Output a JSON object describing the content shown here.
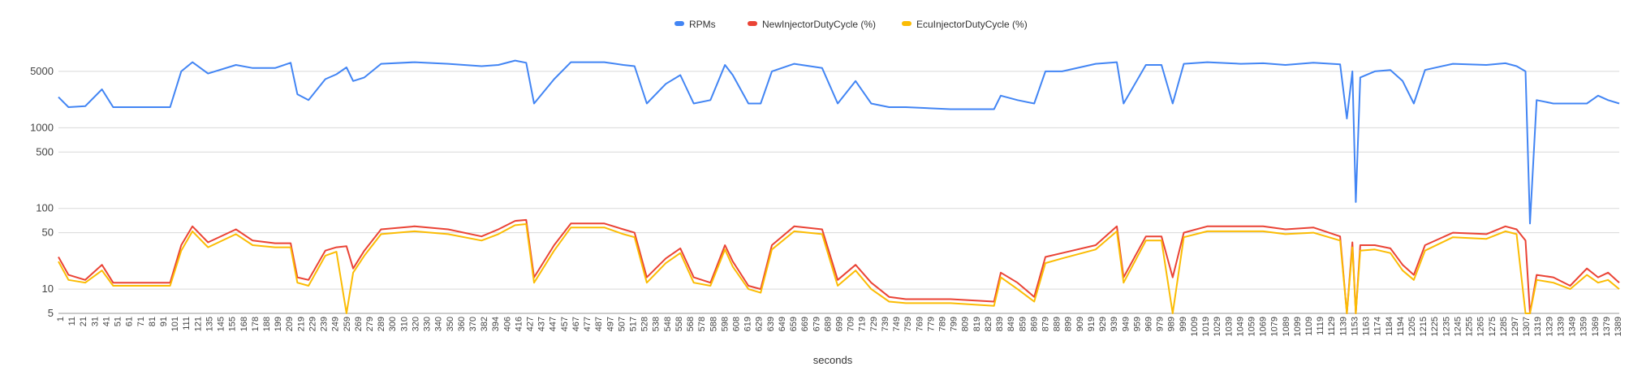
{
  "chart_data": {
    "type": "line",
    "title": "",
    "xlabel": "seconds",
    "ylabel": "",
    "yscale": "log",
    "ylim": [
      5,
      10000
    ],
    "ytick_values": [
      5,
      10,
      50,
      100,
      500,
      1000,
      5000
    ],
    "ytick_labels": [
      "5",
      "10",
      "50",
      "100",
      "500",
      "1000",
      "5000"
    ],
    "grid": true,
    "legend_position": "top-center",
    "xlim": [
      1,
      1399
    ],
    "xtick_labels": [
      "1",
      "11",
      "21",
      "31",
      "41",
      "51",
      "61",
      "71",
      "81",
      "91",
      "101",
      "111",
      "121",
      "135",
      "145",
      "155",
      "168",
      "178",
      "188",
      "199",
      "209",
      "219",
      "229",
      "239",
      "249",
      "259",
      "269",
      "279",
      "289",
      "300",
      "310",
      "320",
      "330",
      "340",
      "350",
      "360",
      "370",
      "382",
      "394",
      "406",
      "416",
      "427",
      "437",
      "447",
      "457",
      "467",
      "477",
      "487",
      "497",
      "507",
      "517",
      "528",
      "538",
      "548",
      "558",
      "568",
      "578",
      "588",
      "598",
      "608",
      "619",
      "629",
      "639",
      "649",
      "659",
      "669",
      "679",
      "689",
      "699",
      "709",
      "719",
      "729",
      "739",
      "749",
      "759",
      "769",
      "779",
      "789",
      "799",
      "809",
      "819",
      "829",
      "839",
      "849",
      "859",
      "869",
      "879",
      "889",
      "899",
      "909",
      "919",
      "929",
      "939",
      "949",
      "959",
      "969",
      "979",
      "989",
      "999",
      "1009",
      "1019",
      "1029",
      "1039",
      "1049",
      "1059",
      "1069",
      "1079",
      "1089",
      "1099",
      "1109",
      "1119",
      "1129",
      "1139",
      "1153",
      "1163",
      "1174",
      "1184",
      "1194",
      "1205",
      "1215",
      "1225",
      "1235",
      "1245",
      "1255",
      "1265",
      "1275",
      "1285",
      "1297",
      "1307",
      "1319",
      "1329",
      "1339",
      "1349",
      "1359",
      "1369",
      "1379",
      "1389"
    ],
    "series": [
      {
        "name": "RPMs",
        "color": "#4285f4",
        "points": [
          [
            1,
            2400
          ],
          [
            10,
            1800
          ],
          [
            25,
            1850
          ],
          [
            40,
            3000
          ],
          [
            50,
            1800
          ],
          [
            60,
            1800
          ],
          [
            90,
            1800
          ],
          [
            101,
            1800
          ],
          [
            111,
            5000
          ],
          [
            121,
            6500
          ],
          [
            135,
            4700
          ],
          [
            160,
            6000
          ],
          [
            175,
            5500
          ],
          [
            195,
            5500
          ],
          [
            209,
            6400
          ],
          [
            215,
            2600
          ],
          [
            225,
            2200
          ],
          [
            240,
            4000
          ],
          [
            250,
            4600
          ],
          [
            259,
            5600
          ],
          [
            265,
            3800
          ],
          [
            275,
            4200
          ],
          [
            290,
            6200
          ],
          [
            320,
            6500
          ],
          [
            350,
            6200
          ],
          [
            380,
            5800
          ],
          [
            395,
            6000
          ],
          [
            410,
            6800
          ],
          [
            420,
            6400
          ],
          [
            427,
            2000
          ],
          [
            445,
            4000
          ],
          [
            460,
            6500
          ],
          [
            490,
            6500
          ],
          [
            507,
            6000
          ],
          [
            517,
            5800
          ],
          [
            528,
            2000
          ],
          [
            545,
            3500
          ],
          [
            558,
            4500
          ],
          [
            570,
            2000
          ],
          [
            585,
            2200
          ],
          [
            598,
            6000
          ],
          [
            605,
            4500
          ],
          [
            619,
            2000
          ],
          [
            630,
            2000
          ],
          [
            640,
            5000
          ],
          [
            660,
            6200
          ],
          [
            685,
            5500
          ],
          [
            699,
            2000
          ],
          [
            715,
            3800
          ],
          [
            729,
            2000
          ],
          [
            745,
            1800
          ],
          [
            760,
            1800
          ],
          [
            800,
            1700
          ],
          [
            839,
            1700
          ],
          [
            845,
            2500
          ],
          [
            860,
            2200
          ],
          [
            875,
            2000
          ],
          [
            885,
            5000
          ],
          [
            900,
            5000
          ],
          [
            930,
            6200
          ],
          [
            949,
            6500
          ],
          [
            955,
            2000
          ],
          [
            975,
            6000
          ],
          [
            989,
            6000
          ],
          [
            999,
            2000
          ],
          [
            1009,
            6200
          ],
          [
            1030,
            6500
          ],
          [
            1060,
            6200
          ],
          [
            1080,
            6300
          ],
          [
            1100,
            6000
          ],
          [
            1125,
            6400
          ],
          [
            1149,
            6100
          ],
          [
            1155,
            1300
          ],
          [
            1160,
            5000
          ],
          [
            1163,
            120
          ],
          [
            1167,
            4200
          ],
          [
            1180,
            5000
          ],
          [
            1194,
            5200
          ],
          [
            1205,
            3800
          ],
          [
            1215,
            2000
          ],
          [
            1225,
            5200
          ],
          [
            1250,
            6200
          ],
          [
            1280,
            6000
          ],
          [
            1297,
            6300
          ],
          [
            1307,
            5800
          ],
          [
            1315,
            5000
          ],
          [
            1319,
            65
          ],
          [
            1325,
            2200
          ],
          [
            1340,
            2000
          ],
          [
            1355,
            2000
          ],
          [
            1370,
            2000
          ],
          [
            1380,
            2500
          ],
          [
            1389,
            2200
          ],
          [
            1399,
            2000
          ]
        ]
      },
      {
        "name": "NewInjectorDutyCycle (%)",
        "color": "#ea4335",
        "points": [
          [
            1,
            25
          ],
          [
            10,
            15
          ],
          [
            25,
            13
          ],
          [
            40,
            20
          ],
          [
            50,
            12
          ],
          [
            60,
            12
          ],
          [
            90,
            12
          ],
          [
            101,
            12
          ],
          [
            111,
            35
          ],
          [
            121,
            60
          ],
          [
            135,
            38
          ],
          [
            160,
            55
          ],
          [
            175,
            40
          ],
          [
            195,
            37
          ],
          [
            209,
            37
          ],
          [
            215,
            14
          ],
          [
            225,
            13
          ],
          [
            240,
            30
          ],
          [
            250,
            33
          ],
          [
            259,
            34
          ],
          [
            265,
            18
          ],
          [
            275,
            30
          ],
          [
            290,
            55
          ],
          [
            320,
            60
          ],
          [
            350,
            55
          ],
          [
            380,
            45
          ],
          [
            395,
            55
          ],
          [
            410,
            70
          ],
          [
            420,
            72
          ],
          [
            427,
            14
          ],
          [
            445,
            35
          ],
          [
            460,
            65
          ],
          [
            490,
            65
          ],
          [
            507,
            55
          ],
          [
            517,
            50
          ],
          [
            528,
            14
          ],
          [
            545,
            24
          ],
          [
            558,
            32
          ],
          [
            570,
            14
          ],
          [
            585,
            12
          ],
          [
            598,
            35
          ],
          [
            605,
            22
          ],
          [
            619,
            11
          ],
          [
            630,
            10
          ],
          [
            640,
            35
          ],
          [
            660,
            60
          ],
          [
            685,
            55
          ],
          [
            699,
            13
          ],
          [
            715,
            20
          ],
          [
            729,
            12
          ],
          [
            745,
            8
          ],
          [
            760,
            7.5
          ],
          [
            800,
            7.5
          ],
          [
            839,
            7
          ],
          [
            845,
            16
          ],
          [
            860,
            12
          ],
          [
            875,
            8
          ],
          [
            885,
            25
          ],
          [
            900,
            28
          ],
          [
            930,
            35
          ],
          [
            949,
            60
          ],
          [
            955,
            14
          ],
          [
            975,
            45
          ],
          [
            989,
            45
          ],
          [
            999,
            14
          ],
          [
            1009,
            50
          ],
          [
            1030,
            60
          ],
          [
            1060,
            60
          ],
          [
            1080,
            60
          ],
          [
            1100,
            55
          ],
          [
            1125,
            58
          ],
          [
            1149,
            45
          ],
          [
            1155,
            5
          ],
          [
            1160,
            38
          ],
          [
            1163,
            5
          ],
          [
            1167,
            35
          ],
          [
            1180,
            35
          ],
          [
            1194,
            32
          ],
          [
            1205,
            20
          ],
          [
            1215,
            15
          ],
          [
            1225,
            35
          ],
          [
            1250,
            50
          ],
          [
            1280,
            48
          ],
          [
            1297,
            60
          ],
          [
            1307,
            55
          ],
          [
            1315,
            40
          ],
          [
            1319,
            5
          ],
          [
            1325,
            15
          ],
          [
            1340,
            14
          ],
          [
            1355,
            11
          ],
          [
            1370,
            18
          ],
          [
            1380,
            14
          ],
          [
            1389,
            16
          ],
          [
            1399,
            12
          ]
        ]
      },
      {
        "name": "EcuInjectorDutyCycle (%)",
        "color": "#fbbc04",
        "points": [
          [
            1,
            22
          ],
          [
            10,
            13
          ],
          [
            25,
            12
          ],
          [
            40,
            17
          ],
          [
            50,
            11
          ],
          [
            60,
            11
          ],
          [
            90,
            11
          ],
          [
            101,
            11
          ],
          [
            111,
            30
          ],
          [
            121,
            52
          ],
          [
            135,
            33
          ],
          [
            160,
            48
          ],
          [
            175,
            35
          ],
          [
            195,
            33
          ],
          [
            209,
            33
          ],
          [
            215,
            12
          ],
          [
            225,
            11
          ],
          [
            240,
            26
          ],
          [
            250,
            29
          ],
          [
            259,
            5
          ],
          [
            265,
            16
          ],
          [
            275,
            26
          ],
          [
            290,
            48
          ],
          [
            320,
            52
          ],
          [
            350,
            48
          ],
          [
            380,
            40
          ],
          [
            395,
            48
          ],
          [
            410,
            62
          ],
          [
            420,
            64
          ],
          [
            427,
            12
          ],
          [
            445,
            30
          ],
          [
            460,
            58
          ],
          [
            490,
            58
          ],
          [
            507,
            48
          ],
          [
            517,
            44
          ],
          [
            528,
            12
          ],
          [
            545,
            21
          ],
          [
            558,
            28
          ],
          [
            570,
            12
          ],
          [
            585,
            11
          ],
          [
            598,
            31
          ],
          [
            605,
            19
          ],
          [
            619,
            10
          ],
          [
            630,
            9
          ],
          [
            640,
            31
          ],
          [
            660,
            52
          ],
          [
            685,
            48
          ],
          [
            699,
            11
          ],
          [
            715,
            17
          ],
          [
            729,
            10
          ],
          [
            745,
            7
          ],
          [
            760,
            6.7
          ],
          [
            800,
            6.7
          ],
          [
            839,
            6.2
          ],
          [
            845,
            14
          ],
          [
            860,
            10
          ],
          [
            875,
            7
          ],
          [
            885,
            21
          ],
          [
            900,
            24
          ],
          [
            930,
            31
          ],
          [
            949,
            52
          ],
          [
            955,
            12
          ],
          [
            975,
            40
          ],
          [
            989,
            40
          ],
          [
            999,
            5
          ],
          [
            1009,
            44
          ],
          [
            1030,
            52
          ],
          [
            1060,
            52
          ],
          [
            1080,
            52
          ],
          [
            1100,
            48
          ],
          [
            1125,
            50
          ],
          [
            1149,
            40
          ],
          [
            1155,
            5
          ],
          [
            1160,
            33
          ],
          [
            1163,
            5
          ],
          [
            1167,
            30
          ],
          [
            1180,
            31
          ],
          [
            1194,
            28
          ],
          [
            1205,
            17
          ],
          [
            1215,
            13
          ],
          [
            1225,
            30
          ],
          [
            1250,
            44
          ],
          [
            1280,
            42
          ],
          [
            1297,
            52
          ],
          [
            1307,
            48
          ],
          [
            1315,
            5
          ],
          [
            1319,
            5
          ],
          [
            1325,
            13
          ],
          [
            1340,
            12
          ],
          [
            1355,
            10
          ],
          [
            1370,
            15
          ],
          [
            1380,
            12
          ],
          [
            1389,
            13
          ],
          [
            1399,
            10
          ]
        ]
      }
    ]
  }
}
